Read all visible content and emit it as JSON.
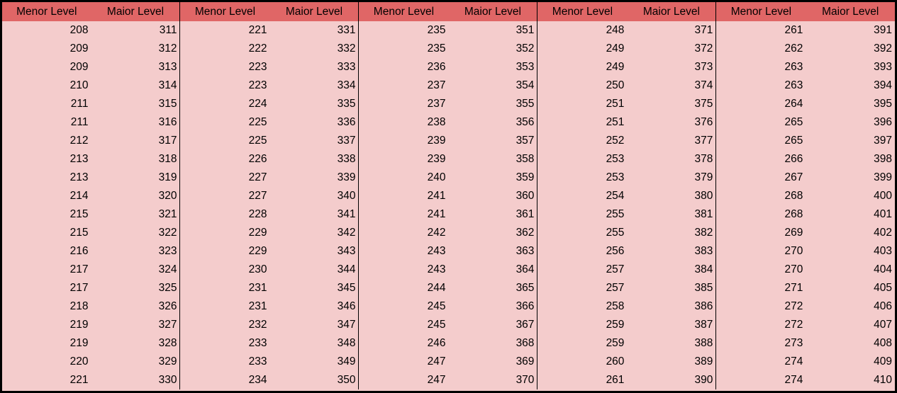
{
  "columns": [
    "Menor Level",
    "Maior Level",
    "Menor Level",
    "Maior Level",
    "Menor Level",
    "Maior Level",
    "Menor Level",
    "Maior Level",
    "Menor Level",
    "Maior Level"
  ],
  "rows": [
    [
      "208",
      "311",
      "221",
      "331",
      "235",
      "351",
      "248",
      "371",
      "261",
      "391"
    ],
    [
      "209",
      "312",
      "222",
      "332",
      "235",
      "352",
      "249",
      "372",
      "262",
      "392"
    ],
    [
      "209",
      "313",
      "223",
      "333",
      "236",
      "353",
      "249",
      "373",
      "263",
      "393"
    ],
    [
      "210",
      "314",
      "223",
      "334",
      "237",
      "354",
      "250",
      "374",
      "263",
      "394"
    ],
    [
      "211",
      "315",
      "224",
      "335",
      "237",
      "355",
      "251",
      "375",
      "264",
      "395"
    ],
    [
      "211",
      "316",
      "225",
      "336",
      "238",
      "356",
      "251",
      "376",
      "265",
      "396"
    ],
    [
      "212",
      "317",
      "225",
      "337",
      "239",
      "357",
      "252",
      "377",
      "265",
      "397"
    ],
    [
      "213",
      "318",
      "226",
      "338",
      "239",
      "358",
      "253",
      "378",
      "266",
      "398"
    ],
    [
      "213",
      "319",
      "227",
      "339",
      "240",
      "359",
      "253",
      "379",
      "267",
      "399"
    ],
    [
      "214",
      "320",
      "227",
      "340",
      "241",
      "360",
      "254",
      "380",
      "268",
      "400"
    ],
    [
      "215",
      "321",
      "228",
      "341",
      "241",
      "361",
      "255",
      "381",
      "268",
      "401"
    ],
    [
      "215",
      "322",
      "229",
      "342",
      "242",
      "362",
      "255",
      "382",
      "269",
      "402"
    ],
    [
      "216",
      "323",
      "229",
      "343",
      "243",
      "363",
      "256",
      "383",
      "270",
      "403"
    ],
    [
      "217",
      "324",
      "230",
      "344",
      "243",
      "364",
      "257",
      "384",
      "270",
      "404"
    ],
    [
      "217",
      "325",
      "231",
      "345",
      "244",
      "365",
      "257",
      "385",
      "271",
      "405"
    ],
    [
      "218",
      "326",
      "231",
      "346",
      "245",
      "366",
      "258",
      "386",
      "272",
      "406"
    ],
    [
      "219",
      "327",
      "232",
      "347",
      "245",
      "367",
      "259",
      "387",
      "272",
      "407"
    ],
    [
      "219",
      "328",
      "233",
      "348",
      "246",
      "368",
      "259",
      "388",
      "273",
      "408"
    ],
    [
      "220",
      "329",
      "233",
      "349",
      "247",
      "369",
      "260",
      "389",
      "274",
      "409"
    ],
    [
      "221",
      "330",
      "234",
      "350",
      "247",
      "370",
      "261",
      "390",
      "274",
      "410"
    ]
  ],
  "colors": {
    "header_bg": "#e06666",
    "body_bg": "#f4cccc",
    "border": "#000000"
  }
}
